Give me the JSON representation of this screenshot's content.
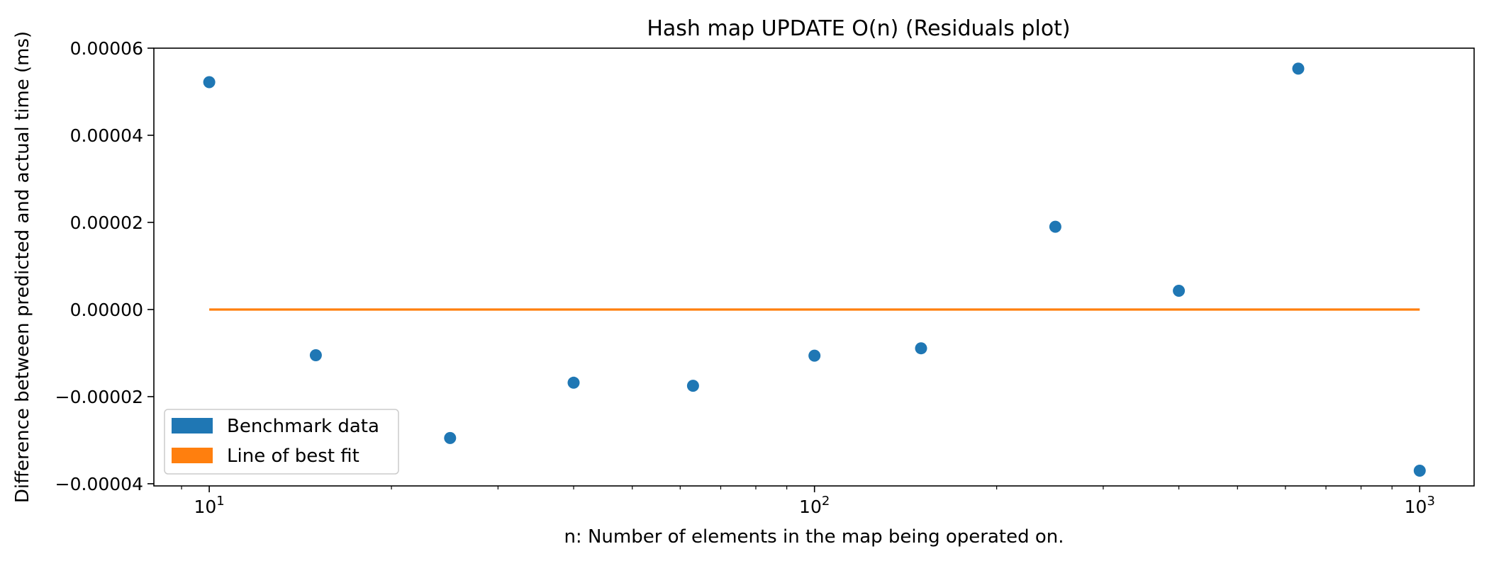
{
  "chart_data": {
    "type": "scatter",
    "title": "Hash map UPDATE O(n)  (Residuals plot)",
    "xlabel": "n: Number of elements in the map being operated on.",
    "ylabel": "Difference between predicted and actual time (ms)",
    "x_scale": "log",
    "xlim": [
      8.1,
      1230
    ],
    "ylim": [
      -4.05e-05,
      6e-05
    ],
    "x_ticks": [
      {
        "value": 10,
        "base": "10",
        "exp": "1"
      },
      {
        "value": 100,
        "base": "10",
        "exp": "2"
      },
      {
        "value": 1000,
        "base": "10",
        "exp": "3"
      }
    ],
    "y_ticks": [
      {
        "value": 6e-05,
        "label": "0.00006"
      },
      {
        "value": 4e-05,
        "label": "0.00004"
      },
      {
        "value": 2e-05,
        "label": "0.00002"
      },
      {
        "value": 0.0,
        "label": "0.00000"
      },
      {
        "value": -2e-05,
        "label": "−0.00002"
      },
      {
        "value": -4e-05,
        "label": "−0.00004"
      }
    ],
    "series": [
      {
        "name": "Benchmark data",
        "color": "#1f77b4",
        "kind": "scatter",
        "x": [
          10,
          15,
          25,
          40,
          63,
          100,
          150,
          250,
          400,
          630,
          1000
        ],
        "y": [
          5.22e-05,
          -1.05e-05,
          -2.95e-05,
          -1.68e-05,
          -1.75e-05,
          -1.06e-05,
          -8.9e-06,
          1.9e-05,
          4.3e-06,
          5.53e-05,
          -3.7e-05
        ]
      },
      {
        "name": "Line of best fit",
        "color": "#ff7f0e",
        "kind": "line",
        "x": [
          10,
          1000
        ],
        "y": [
          0.0,
          0.0
        ]
      }
    ],
    "legend_position": "lower-left",
    "grid": false
  }
}
